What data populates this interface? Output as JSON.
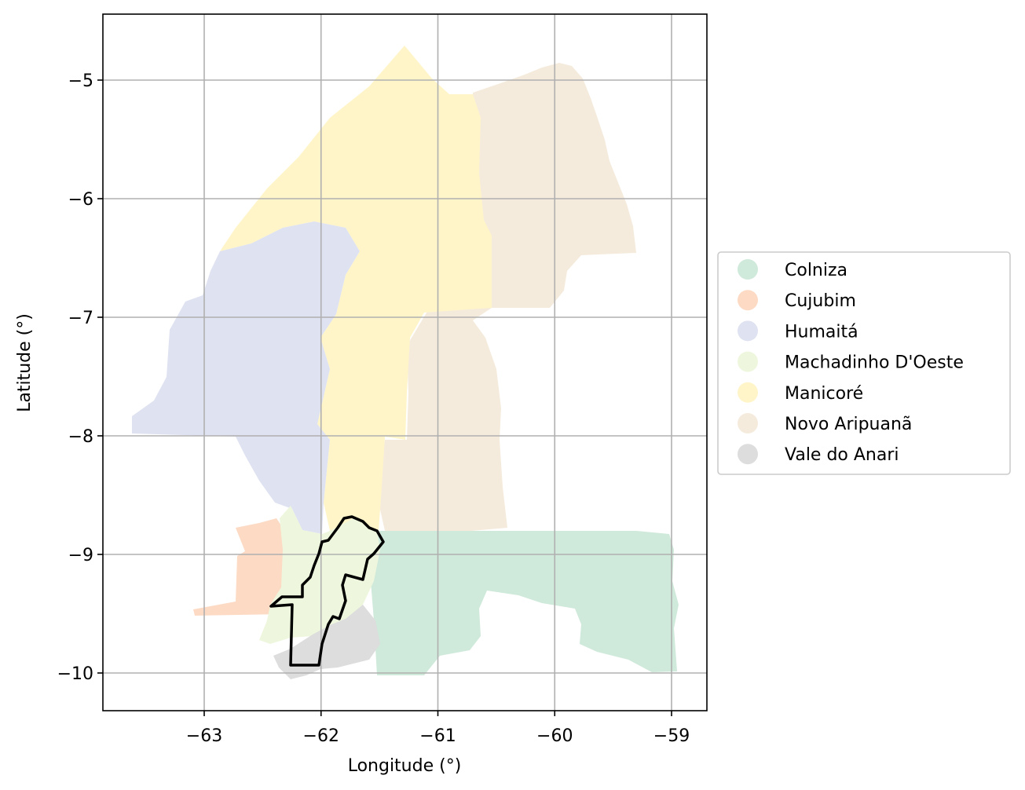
{
  "map": {
    "xlabel": "Longitude (°)",
    "ylabel": "Latitude (°)",
    "xlim": [
      -63.85,
      -58.72
    ],
    "ylim": [
      -10.32,
      -4.45
    ],
    "x_ticks": [
      -63,
      -62,
      -61,
      -60,
      -59
    ],
    "y_ticks": [
      -5,
      -6,
      -7,
      -8,
      -9,
      -10
    ],
    "x_tick_labels": [
      "−63",
      "−62",
      "−61",
      "−60",
      "−59"
    ],
    "y_tick_labels": [
      "−5",
      "−6",
      "−7",
      "−8",
      "−9",
      "−10"
    ],
    "grid": true,
    "legend_placement": "center-right outside plot",
    "highlighted_outline_color": "#000000"
  },
  "legend": {
    "items": [
      {
        "label": "Colniza",
        "color": "#cfe9da"
      },
      {
        "label": "Cujubim",
        "color": "#fcdac4"
      },
      {
        "label": "Humaitá",
        "color": "#dfe2f1"
      },
      {
        "label": "Machadinho D'Oeste",
        "color": "#eef7de"
      },
      {
        "label": "Manicoré",
        "color": "#fff5c9"
      },
      {
        "label": "Novo Aripuanã",
        "color": "#f5ebdc"
      },
      {
        "label": "Vale do Anari",
        "color": "#dddddd"
      }
    ]
  }
}
